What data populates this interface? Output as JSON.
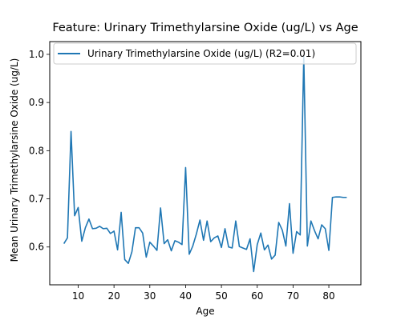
{
  "chart_data": {
    "type": "line",
    "title": "Feature: Urinary Trimethylarsine Oxide (ug/L) vs Age",
    "xlabel": "Age",
    "ylabel": "Mean Urinary Trimethylarsine Oxide (ug/L)",
    "xlim": [
      2.05,
      88.95
    ],
    "ylim": [
      0.5215,
      1.0265
    ],
    "xticks": [
      10,
      20,
      30,
      40,
      50,
      60,
      70,
      80
    ],
    "yticks": [
      0.6,
      0.7,
      0.8,
      0.9,
      1.0
    ],
    "grid": false,
    "legend_position": "top-left",
    "series": [
      {
        "name": "Urinary Trimethylarsine Oxide (ug/L) (R2=0.01)",
        "color": "#1f77b4",
        "x": [
          6,
          7,
          8,
          9,
          10,
          11,
          12,
          13,
          14,
          15,
          16,
          17,
          18,
          19,
          20,
          21,
          22,
          23,
          24,
          25,
          26,
          27,
          28,
          29,
          30,
          31,
          32,
          33,
          34,
          35,
          36,
          37,
          38,
          39,
          40,
          41,
          42,
          43,
          44,
          45,
          46,
          47,
          48,
          49,
          50,
          51,
          52,
          53,
          54,
          55,
          56,
          57,
          58,
          59,
          60,
          61,
          62,
          63,
          64,
          65,
          66,
          67,
          68,
          69,
          70,
          71,
          72,
          73,
          74,
          75,
          76,
          77,
          78,
          79,
          80,
          81,
          82,
          83,
          84,
          85
        ],
        "values": [
          0.607,
          0.619,
          0.84,
          0.665,
          0.682,
          0.612,
          0.64,
          0.658,
          0.638,
          0.639,
          0.643,
          0.638,
          0.639,
          0.628,
          0.633,
          0.594,
          0.672,
          0.574,
          0.566,
          0.59,
          0.64,
          0.64,
          0.629,
          0.579,
          0.61,
          0.602,
          0.593,
          0.681,
          0.607,
          0.615,
          0.592,
          0.613,
          0.61,
          0.605,
          0.765,
          0.585,
          0.602,
          0.627,
          0.656,
          0.614,
          0.654,
          0.611,
          0.619,
          0.623,
          0.599,
          0.638,
          0.6,
          0.598,
          0.654,
          0.601,
          0.598,
          0.595,
          0.617,
          0.549,
          0.605,
          0.629,
          0.594,
          0.604,
          0.575,
          0.583,
          0.651,
          0.635,
          0.602,
          0.69,
          0.587,
          0.632,
          0.625,
          0.996,
          0.602,
          0.654,
          0.634,
          0.617,
          0.646,
          0.638,
          0.593,
          0.703,
          0.704,
          0.704,
          0.703,
          0.703
        ]
      }
    ]
  }
}
